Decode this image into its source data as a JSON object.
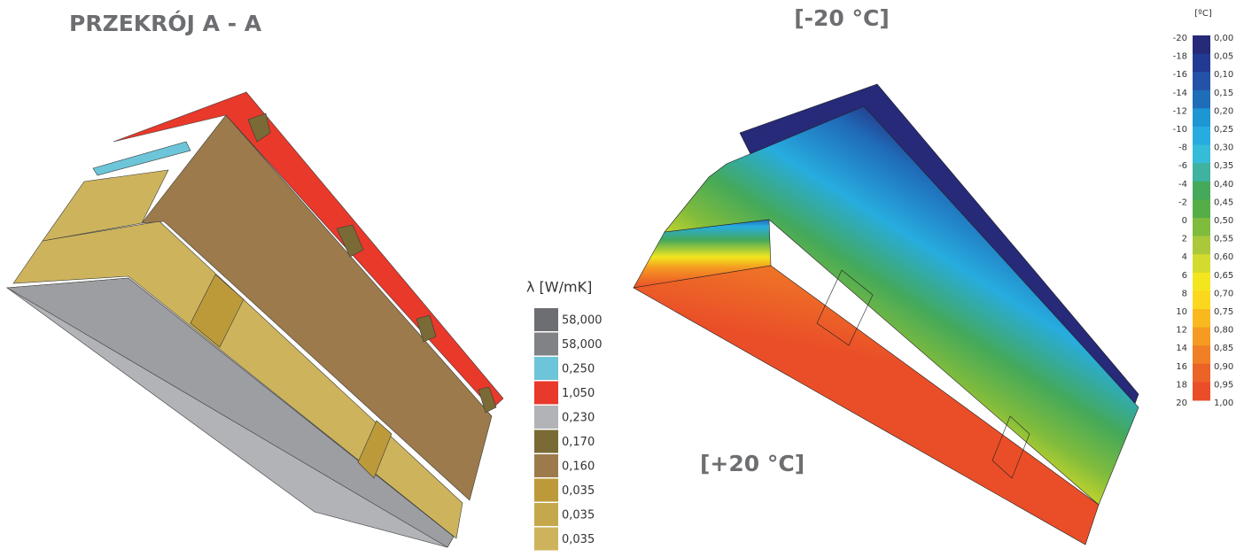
{
  "header": {
    "title": "PRZEKRÓJ A - A",
    "cold_side": "[-20 °C]",
    "warm_side": "[+20 °C]"
  },
  "lambda_legend": {
    "title": "λ [W/mK]",
    "items": [
      {
        "label": "58,000",
        "color": "#6d6e71"
      },
      {
        "label": "58,000",
        "color": "#808285"
      },
      {
        "label": "0,250",
        "color": "#6cc5d8"
      },
      {
        "label": "1,050",
        "color": "#e8392b"
      },
      {
        "label": "0,230",
        "color": "#b1b3b6"
      },
      {
        "label": "0,170",
        "color": "#7a6a35"
      },
      {
        "label": "0,160",
        "color": "#9c7a4b"
      },
      {
        "label": "0,035",
        "color": "#bc9a3a"
      },
      {
        "label": "0,035",
        "color": "#c6a84c"
      },
      {
        "label": "0,035",
        "color": "#cdb45c"
      }
    ]
  },
  "temperature_legend": {
    "unit": "[ºC]",
    "temperatures": [
      -20,
      -18,
      -16,
      -14,
      -12,
      -10,
      -8,
      -6,
      -4,
      -2,
      0,
      2,
      4,
      6,
      8,
      10,
      12,
      14,
      16,
      18,
      20
    ],
    "factors": [
      "0,00",
      "0,05",
      "0,10",
      "0,15",
      "0,20",
      "0,25",
      "0,30",
      "0,35",
      "0,40",
      "0,45",
      "0,50",
      "0,55",
      "0,60",
      "0,65",
      "0,70",
      "0,75",
      "0,80",
      "0,85",
      "0,90",
      "0,95",
      "1,00"
    ],
    "colors": [
      "#262a78",
      "#233a92",
      "#2352a6",
      "#1f6cb9",
      "#1d96d4",
      "#27acdf",
      "#35bcd9",
      "#3fb2a0",
      "#44a95a",
      "#55ae45",
      "#7fbb3d",
      "#aac83a",
      "#d4db2e",
      "#f3e61f",
      "#fbd81d",
      "#f9b91e",
      "#f59b22",
      "#f07f26",
      "#ec6328",
      "#ea4e28"
    ]
  }
}
